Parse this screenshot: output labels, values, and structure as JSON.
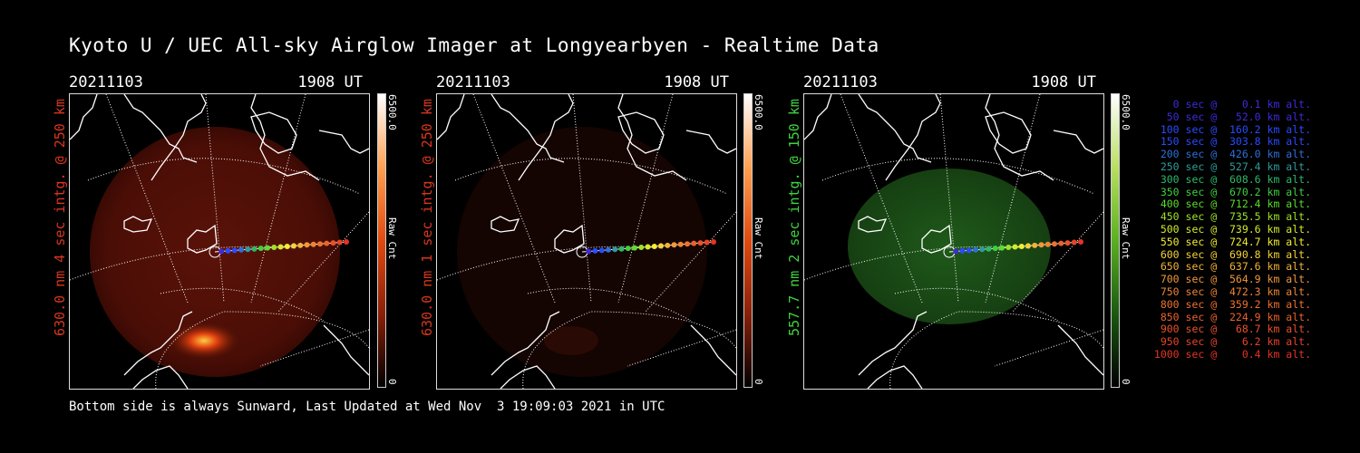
{
  "title": "Kyoto U / UEC All-sky Airglow Imager at Longyearbyen - Realtime Data",
  "panels": [
    {
      "date": "20211103",
      "time": "1908 UT",
      "side_label": "630.0 nm 4 sec intg. @ 250 km",
      "color": "#d8361e",
      "cb_max": "6500.0",
      "cb_min": "0",
      "cb_label": "Raw Cnt"
    },
    {
      "date": "20211103",
      "time": "1908 UT",
      "side_label": "630.0 nm 1 sec intg. @ 250 km",
      "color": "#d8361e",
      "cb_max": "6500.0",
      "cb_min": "0",
      "cb_label": "Raw Cnt"
    },
    {
      "date": "20211103",
      "time": "1908 UT",
      "side_label": "557.7 nm 2 sec intg. @ 150 km",
      "color": "#3fd33f",
      "cb_max": "6500.0",
      "cb_min": "0",
      "cb_label": "Raw Cnt"
    }
  ],
  "footer": "Bottom side is always Sunward, Last Updated at Wed Nov  3 19:09:03 2021 in UTC",
  "legend": [
    {
      "text": "   0 sec @    0.1 km alt.",
      "color": "#3d2bd6"
    },
    {
      "text": "  50 sec @   52.0 km alt.",
      "color": "#3d2bd6"
    },
    {
      "text": " 100 sec @  160.2 km alt.",
      "color": "#2a4bff"
    },
    {
      "text": " 150 sec @  303.8 km alt.",
      "color": "#2a4bff"
    },
    {
      "text": " 200 sec @  426.0 km alt.",
      "color": "#2f6fd8"
    },
    {
      "text": " 250 sec @  527.4 km alt.",
      "color": "#2f9c9c"
    },
    {
      "text": " 300 sec @  608.6 km alt.",
      "color": "#2fb86a"
    },
    {
      "text": " 350 sec @  670.2 km alt.",
      "color": "#40d040"
    },
    {
      "text": " 400 sec @  712.4 km alt.",
      "color": "#5ddc2c"
    },
    {
      "text": " 450 sec @  735.5 km alt.",
      "color": "#9ee22a"
    },
    {
      "text": " 500 sec @  739.6 km alt.",
      "color": "#d3ea2a"
    },
    {
      "text": " 550 sec @  724.7 km alt.",
      "color": "#f3ef30"
    },
    {
      "text": " 600 sec @  690.8 km alt.",
      "color": "#f5d23a"
    },
    {
      "text": " 650 sec @  637.6 km alt.",
      "color": "#f2b23a"
    },
    {
      "text": " 700 sec @  564.9 km alt.",
      "color": "#f0983a"
    },
    {
      "text": " 750 sec @  472.3 km alt.",
      "color": "#ee8436"
    },
    {
      "text": " 800 sec @  359.2 km alt.",
      "color": "#ec7230"
    },
    {
      "text": " 850 sec @  224.9 km alt.",
      "color": "#ea622c"
    },
    {
      "text": " 900 sec @   68.7 km alt.",
      "color": "#e8522a"
    },
    {
      "text": " 950 sec @    6.2 km alt.",
      "color": "#e64428"
    },
    {
      "text": "1000 sec @    0.4 km alt.",
      "color": "#e43424"
    }
  ]
}
